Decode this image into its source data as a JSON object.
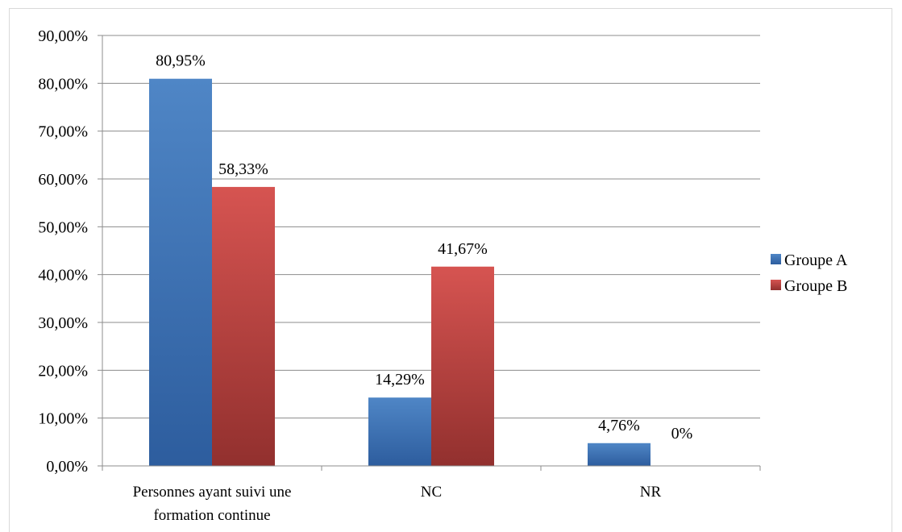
{
  "chart_data": {
    "type": "bar",
    "categories": [
      [
        "Personnes ayant suivi une",
        "formation continue"
      ],
      [
        "NC"
      ],
      [
        "NR"
      ]
    ],
    "series": [
      {
        "name": "Groupe A",
        "values": [
          80.95,
          14.29,
          4.76
        ],
        "labels": [
          "80,95%",
          "14,29%",
          "4,76%"
        ],
        "color_light": "#4f86c6",
        "color_dark": "#2d5d9e"
      },
      {
        "name": "Groupe B",
        "values": [
          58.33,
          41.67,
          0
        ],
        "labels": [
          "58,33%",
          "41,67%",
          "0%"
        ],
        "color_light": "#d65451",
        "color_dark": "#92302e"
      }
    ],
    "ylim": [
      0,
      90
    ],
    "yticks": [
      0,
      10,
      20,
      30,
      40,
      50,
      60,
      70,
      80,
      90
    ],
    "ytick_labels": [
      "0,00%",
      "10,00%",
      "20,00%",
      "30,00%",
      "40,00%",
      "50,00%",
      "60,00%",
      "70,00%",
      "80,00%",
      "90,00%"
    ],
    "grid": true,
    "legend_position": "right"
  }
}
